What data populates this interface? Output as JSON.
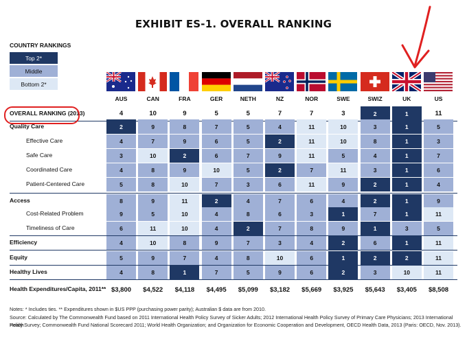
{
  "title": "EXHIBIT ES-1. OVERALL RANKING",
  "legend": {
    "title": "COUNTRY RANKINGS",
    "top": "Top 2*",
    "middle": "Middle",
    "bottom": "Bottom 2*"
  },
  "colors": {
    "top": "#1f3864",
    "middle": "#9fb0d6",
    "bottom": "#dde8f5",
    "annotation": "#e02020"
  },
  "countries": [
    "AUS",
    "CAN",
    "FRA",
    "GER",
    "NETH",
    "NZ",
    "NOR",
    "SWE",
    "SWIZ",
    "UK",
    "US"
  ],
  "flags": [
    "australia-flag",
    "canada-flag",
    "france-flag",
    "germany-flag",
    "netherlands-flag",
    "new-zealand-flag",
    "norway-flag",
    "sweden-flag",
    "switzerland-flag",
    "uk-flag",
    "us-flag"
  ],
  "rows": [
    {
      "label": "OVERALL RANKING (2013)",
      "bold": true,
      "indent": false,
      "values": [
        "4",
        "10",
        "9",
        "5",
        "5",
        "7",
        "7",
        "3",
        "2",
        "1",
        "11"
      ],
      "shade": [
        "w",
        "w",
        "w",
        "w",
        "w",
        "w",
        "w",
        "w",
        "t",
        "t",
        "w"
      ]
    },
    {
      "label": "Quality Care",
      "bold": true,
      "indent": false,
      "values": [
        "2",
        "9",
        "8",
        "7",
        "5",
        "4",
        "11",
        "10",
        "3",
        "1",
        "5"
      ],
      "shade": [
        "t",
        "m",
        "m",
        "m",
        "m",
        "m",
        "b",
        "b",
        "m",
        "t",
        "m"
      ]
    },
    {
      "label": "Effective Care",
      "bold": false,
      "indent": true,
      "values": [
        "4",
        "7",
        "9",
        "6",
        "5",
        "2",
        "11",
        "10",
        "8",
        "1",
        "3"
      ],
      "shade": [
        "m",
        "m",
        "m",
        "m",
        "m",
        "t",
        "b",
        "b",
        "m",
        "t",
        "m"
      ]
    },
    {
      "label": "Safe Care",
      "bold": false,
      "indent": true,
      "values": [
        "3",
        "10",
        "2",
        "6",
        "7",
        "9",
        "11",
        "5",
        "4",
        "1",
        "7"
      ],
      "shade": [
        "m",
        "b",
        "t",
        "m",
        "m",
        "m",
        "b",
        "m",
        "m",
        "t",
        "m"
      ]
    },
    {
      "label": "Coordinated Care",
      "bold": false,
      "indent": true,
      "values": [
        "4",
        "8",
        "9",
        "10",
        "5",
        "2",
        "7",
        "11",
        "3",
        "1",
        "6"
      ],
      "shade": [
        "m",
        "m",
        "m",
        "b",
        "m",
        "t",
        "m",
        "b",
        "m",
        "t",
        "m"
      ]
    },
    {
      "label": "Patient-Centered Care",
      "bold": false,
      "indent": true,
      "values": [
        "5",
        "8",
        "10",
        "7",
        "3",
        "6",
        "11",
        "9",
        "2",
        "1",
        "4"
      ],
      "shade": [
        "m",
        "m",
        "b",
        "m",
        "m",
        "m",
        "b",
        "m",
        "t",
        "t",
        "m"
      ]
    },
    {
      "label": "Access",
      "bold": true,
      "indent": false,
      "values": [
        "8",
        "9",
        "11",
        "2",
        "4",
        "7",
        "6",
        "4",
        "2",
        "1",
        "9"
      ],
      "shade": [
        "m",
        "m",
        "b",
        "t",
        "m",
        "m",
        "m",
        "m",
        "t",
        "t",
        "m"
      ]
    },
    {
      "label": "Cost-Related Problem",
      "bold": false,
      "indent": true,
      "values": [
        "9",
        "5",
        "10",
        "4",
        "8",
        "6",
        "3",
        "1",
        "7",
        "1",
        "11"
      ],
      "shade": [
        "m",
        "m",
        "b",
        "m",
        "m",
        "m",
        "m",
        "t",
        "m",
        "t",
        "b"
      ]
    },
    {
      "label": "Timeliness of Care",
      "bold": false,
      "indent": true,
      "values": [
        "6",
        "11",
        "10",
        "4",
        "2",
        "7",
        "8",
        "9",
        "1",
        "3",
        "5"
      ],
      "shade": [
        "m",
        "b",
        "b",
        "m",
        "t",
        "m",
        "m",
        "m",
        "t",
        "m",
        "m"
      ]
    },
    {
      "label": "Efficiency",
      "bold": true,
      "indent": false,
      "values": [
        "4",
        "10",
        "8",
        "9",
        "7",
        "3",
        "4",
        "2",
        "6",
        "1",
        "11"
      ],
      "shade": [
        "m",
        "b",
        "m",
        "m",
        "m",
        "m",
        "m",
        "t",
        "m",
        "t",
        "b"
      ]
    },
    {
      "label": "Equity",
      "bold": true,
      "indent": false,
      "values": [
        "5",
        "9",
        "7",
        "4",
        "8",
        "10",
        "6",
        "1",
        "2",
        "2",
        "11"
      ],
      "shade": [
        "m",
        "m",
        "m",
        "m",
        "m",
        "b",
        "m",
        "t",
        "t",
        "t",
        "b"
      ]
    },
    {
      "label": "Healthy Lives",
      "bold": true,
      "indent": false,
      "values": [
        "4",
        "8",
        "1",
        "7",
        "5",
        "9",
        "6",
        "2",
        "3",
        "10",
        "11"
      ],
      "shade": [
        "m",
        "m",
        "t",
        "m",
        "m",
        "m",
        "m",
        "t",
        "m",
        "b",
        "b"
      ]
    },
    {
      "label": "Health Expenditures/Capita, 2011**",
      "bold": true,
      "indent": false,
      "values": [
        "$3,800",
        "$4,522",
        "$4,118",
        "$4,495",
        "$5,099",
        "$3,182",
        "$5,669",
        "$3,925",
        "$5,643",
        "$3,405",
        "$8,508"
      ],
      "shade": [
        "w",
        "w",
        "w",
        "w",
        "w",
        "w",
        "w",
        "w",
        "w",
        "w",
        "w"
      ]
    }
  ],
  "notes": [
    "Notes: * Includes ties. ** Expenditures shown in $US PPP (purchasing power parity); Australian $ data are from 2010.",
    "Source: Calculated by The Commonwealth Fund based on 2011 International Health Policy Survey of Sicker Adults; 2012 International Health Policy Survey of Primary Care Physicians; 2013 International Health",
    "Policy Survey; Commonwealth Fund National Scorecard 2011; World Health Organization; and Organization for Economic Cooperation and Development, OECD Health Data, 2013 (Paris: OECD, Nov. 2013)."
  ]
}
